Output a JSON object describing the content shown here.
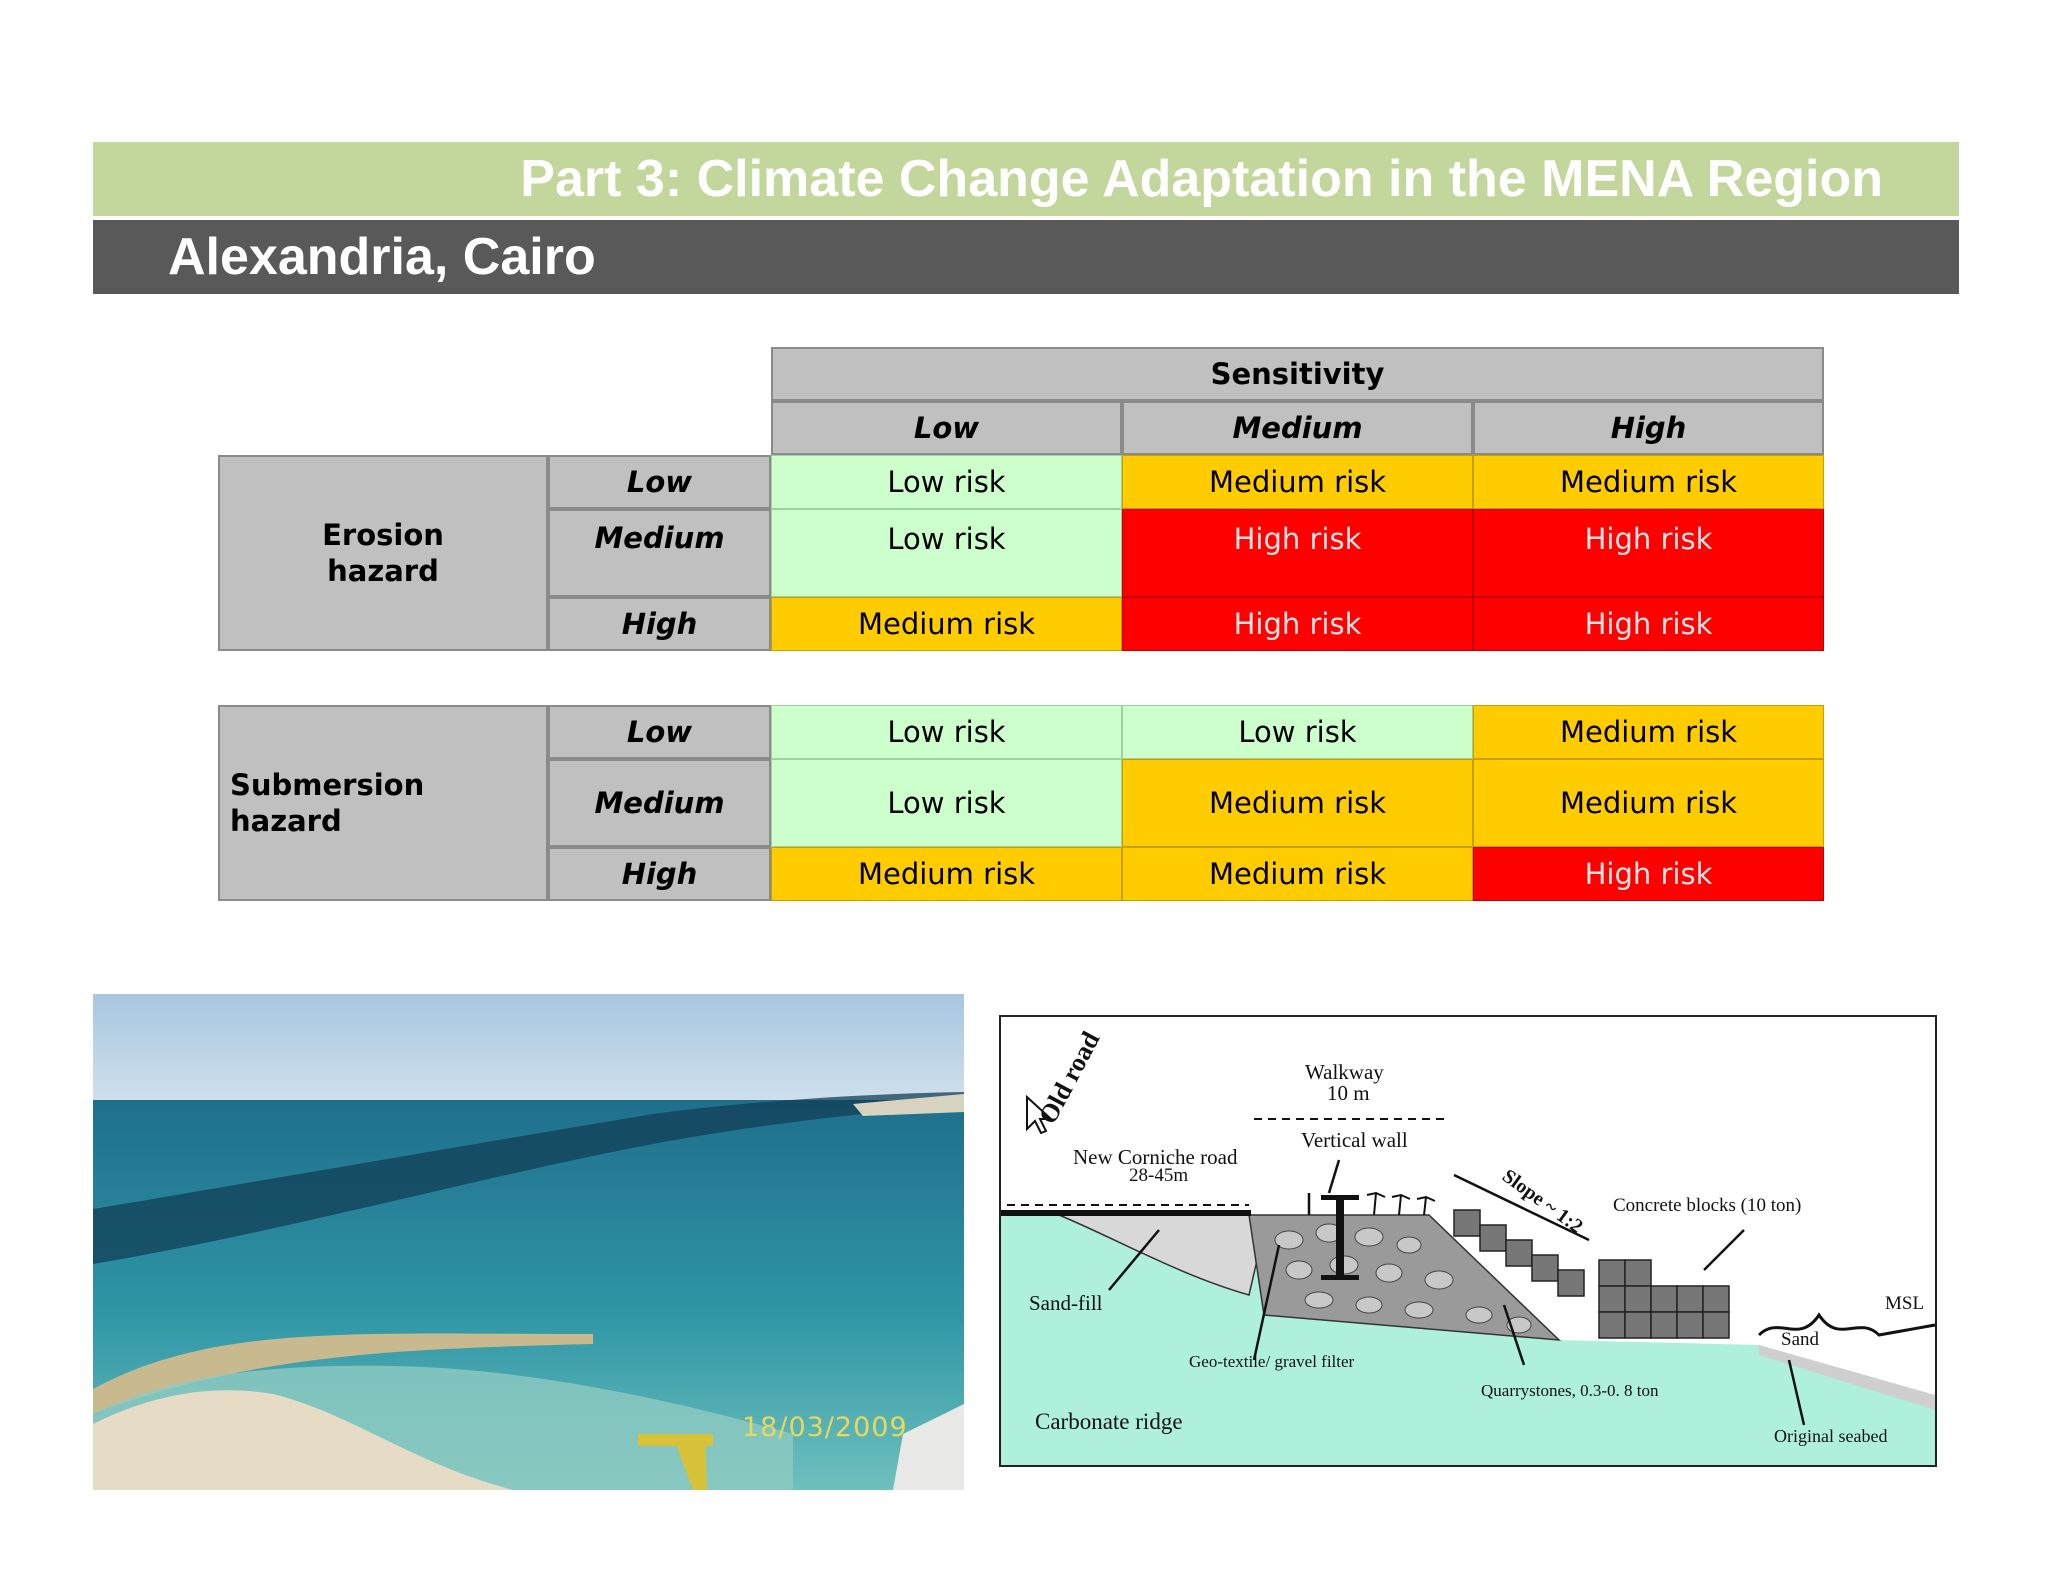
{
  "header": {
    "title": "Part 3: Climate Change Adaptation in the MENA Region",
    "subtitle": "Alexandria, Cairo"
  },
  "table": {
    "sensitivity_label": "Sensitivity",
    "columns": [
      "Low",
      "Medium",
      "High"
    ],
    "erosion": {
      "label": "Erosion hazard",
      "rows": [
        {
          "level": "Low",
          "cells": [
            "Low risk",
            "Medium risk",
            "Medium risk"
          ]
        },
        {
          "level": "Medium",
          "cells": [
            "Low risk",
            "High risk",
            "High risk"
          ]
        },
        {
          "level": "High",
          "cells": [
            "Medium risk",
            "High risk",
            "High risk"
          ]
        }
      ]
    },
    "submersion": {
      "label": "Submersion hazard",
      "rows": [
        {
          "level": "Low",
          "cells": [
            "Low risk",
            "Low risk",
            "Medium risk"
          ]
        },
        {
          "level": "Medium",
          "cells": [
            "Low risk",
            "Medium risk",
            "Medium risk"
          ]
        },
        {
          "level": "High",
          "cells": [
            "Medium risk",
            "Medium risk",
            "High risk"
          ]
        }
      ]
    },
    "colors": {
      "low": "#ccffcc",
      "medium": "#ffcc00",
      "high": "#ff0000",
      "header": "#c0c0c0"
    }
  },
  "photo": {
    "date_stamp": "18/03/2009"
  },
  "diagram": {
    "labels": {
      "old_road": "Old road",
      "walkway": "Walkway",
      "walkway_width": "10 m",
      "new_corniche": "New Corniche road",
      "new_corniche_width": "28-45m",
      "vertical_wall": "Vertical wall",
      "slope": "Slope ~ 1:2",
      "concrete_blocks": "Concrete blocks (10 ton)",
      "sand_fill": "Sand-fill",
      "msl": "MSL",
      "sand": "Sand",
      "geotextile": "Geo-textile/ gravel filter",
      "quarrystones": "Quarrystones, 0.3-0. 8 ton",
      "carbonate_ridge": "Carbonate ridge",
      "original_seabed": "Original seabed"
    }
  }
}
